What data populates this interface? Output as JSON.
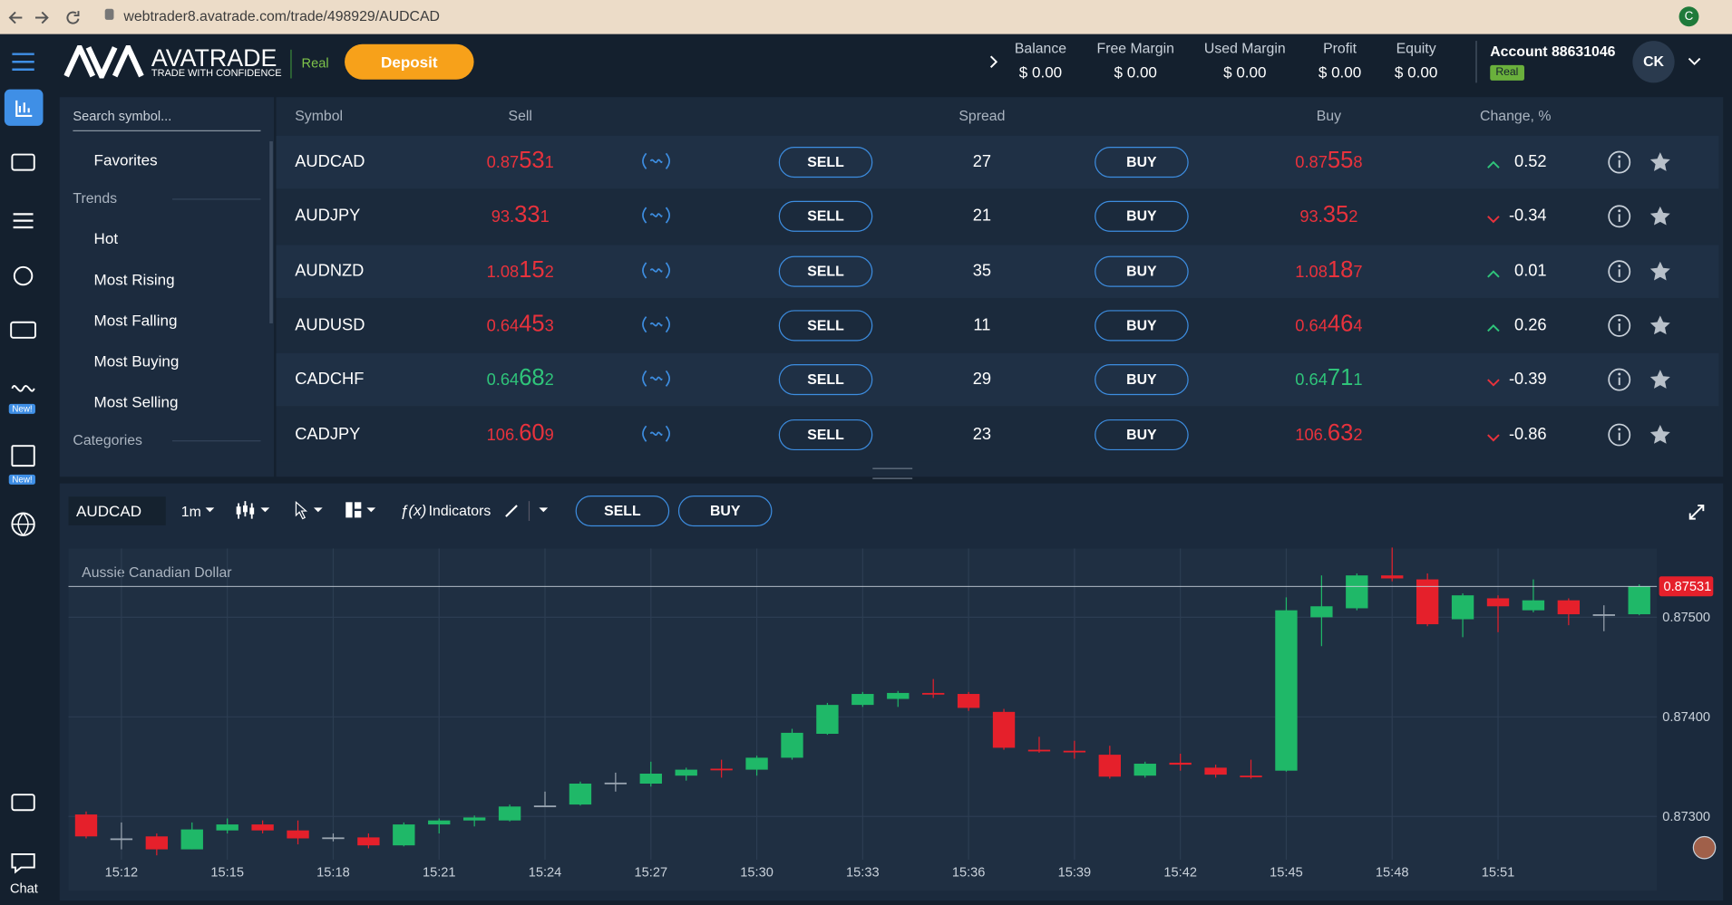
{
  "browser": {
    "url": "webtrader8.avatrade.com/trade/498929/AUDCAD"
  },
  "header": {
    "logo": "AVATRADE",
    "tagline": "TRADE WITH CONFIDENCE",
    "mode": "Real",
    "deposit": "Deposit",
    "stats": [
      {
        "label": "Balance",
        "value": "$ 0.00"
      },
      {
        "label": "Free Margin",
        "value": "$ 0.00"
      },
      {
        "label": "Used Margin",
        "value": "$ 0.00"
      },
      {
        "label": "Profit",
        "value": "$ 0.00"
      },
      {
        "label": "Equity",
        "value": "$ 0.00"
      }
    ],
    "account": "Account 88631046",
    "account_badge": "Real",
    "avatar": "CK"
  },
  "sidebar": {
    "badges": [
      "New!",
      "New!"
    ],
    "chat": "Chat"
  },
  "panel": {
    "search": "Search symbol...",
    "items": [
      {
        "text": "Favorites",
        "kind": "item"
      },
      {
        "text": "Trends",
        "kind": "section"
      },
      {
        "text": "Hot",
        "kind": "item"
      },
      {
        "text": "Most Rising",
        "kind": "item"
      },
      {
        "text": "Most Falling",
        "kind": "item"
      },
      {
        "text": "Most Buying",
        "kind": "item"
      },
      {
        "text": "Most Selling",
        "kind": "item"
      },
      {
        "text": "Categories",
        "kind": "section"
      }
    ]
  },
  "table": {
    "columns": [
      "Symbol",
      "Sell",
      "Spread",
      "Buy",
      "Change, %"
    ],
    "buttons": {
      "sell": "SELL",
      "buy": "BUY"
    },
    "rows": [
      {
        "symbol": "AUDCAD",
        "sell": "0.87531",
        "spread": 27,
        "buy": "0.87558",
        "change": 0.52,
        "color": "#e8323c"
      },
      {
        "symbol": "AUDJPY",
        "sell": "93.331",
        "spread": 21,
        "buy": "93.352",
        "change": -0.34,
        "color": "#e8323c"
      },
      {
        "symbol": "AUDNZD",
        "sell": "1.08152",
        "spread": 35,
        "buy": "1.08187",
        "change": 0.01,
        "color": "#e8323c"
      },
      {
        "symbol": "AUDUSD",
        "sell": "0.64453",
        "spread": 11,
        "buy": "0.64464",
        "change": 0.26,
        "color": "#e8323c"
      },
      {
        "symbol": "CADCHF",
        "sell": "0.64682",
        "spread": 29,
        "buy": "0.64711",
        "change": -0.39,
        "color": "#2fc47a"
      },
      {
        "symbol": "CADJPY",
        "sell": "106.609",
        "spread": 23,
        "buy": "106.632",
        "change": -0.86,
        "color": "#e8323c"
      }
    ]
  },
  "toolbar": {
    "symbol": "AUDCAD",
    "timeframe": "1m",
    "indicators": "Indicators",
    "sell": "SELL",
    "buy": "BUY"
  },
  "chart_data": {
    "type": "candlestick",
    "title": "Aussie Canadian Dollar",
    "categories": [
      null,
      "15:12",
      null,
      null,
      "15:15",
      null,
      null,
      "15:18",
      null,
      null,
      "15:21",
      null,
      null,
      "15:24",
      null,
      null,
      "15:27",
      null,
      null,
      "15:30",
      null,
      null,
      "15:33",
      null,
      null,
      "15:36",
      null,
      null,
      "15:39",
      null,
      null,
      "15:42",
      null,
      null,
      "15:45",
      null,
      null,
      "15:48",
      null,
      null,
      "15:51",
      null,
      null,
      null,
      null
    ],
    "open": [
      0.87302,
      0.87278,
      0.8728,
      0.87267,
      0.87286,
      0.87292,
      0.87286,
      0.87279,
      0.87279,
      0.87271,
      0.87292,
      0.87296,
      0.87296,
      0.87311,
      0.87312,
      0.87334,
      0.87333,
      0.87341,
      0.87348,
      0.87347,
      0.87359,
      0.87383,
      0.87412,
      0.87418,
      0.87424,
      0.87423,
      0.87405,
      0.87367,
      0.87366,
      0.87362,
      0.87341,
      0.87354,
      0.87349,
      0.87341,
      0.87346,
      0.875,
      0.87509,
      0.87542,
      0.87538,
      0.87498,
      0.87519,
      0.87507,
      0.87517,
      0.87503,
      0.87503
    ],
    "high": [
      0.87305,
      0.87294,
      0.87283,
      0.87294,
      0.87298,
      0.87296,
      0.87296,
      0.87283,
      0.87283,
      0.87294,
      0.87298,
      0.87301,
      0.87312,
      0.87325,
      0.87335,
      0.87344,
      0.87355,
      0.87349,
      0.87357,
      0.87361,
      0.87388,
      0.87414,
      0.87425,
      0.87426,
      0.87438,
      0.87425,
      0.87408,
      0.8738,
      0.87376,
      0.87371,
      0.87355,
      0.87363,
      0.87352,
      0.87357,
      0.8752,
      0.87542,
      0.87544,
      0.8757,
      0.87544,
      0.87524,
      0.87522,
      0.87538,
      0.87519,
      0.87512,
      0.87533
    ],
    "low": [
      0.87278,
      0.87267,
      0.87261,
      0.87267,
      0.87283,
      0.87283,
      0.87272,
      0.87275,
      0.87268,
      0.8727,
      0.87283,
      0.8729,
      0.87295,
      0.8731,
      0.87311,
      0.87325,
      0.8733,
      0.87336,
      0.87339,
      0.87341,
      0.87357,
      0.87382,
      0.8741,
      0.8741,
      0.87419,
      0.87406,
      0.87367,
      0.87364,
      0.87358,
      0.87338,
      0.87339,
      0.87346,
      0.87339,
      0.87338,
      0.87345,
      0.87471,
      0.87507,
      0.87536,
      0.87491,
      0.8748,
      0.87485,
      0.87505,
      0.87492,
      0.87486,
      0.87502
    ],
    "close": [
      0.8728,
      0.87278,
      0.87267,
      0.87287,
      0.87292,
      0.87286,
      0.87278,
      0.87279,
      0.87271,
      0.87292,
      0.87296,
      0.87299,
      0.8731,
      0.87311,
      0.87333,
      0.87334,
      0.87343,
      0.87347,
      0.87347,
      0.87359,
      0.87384,
      0.87412,
      0.87423,
      0.87424,
      0.87423,
      0.87409,
      0.87369,
      0.87366,
      0.87365,
      0.8734,
      0.87353,
      0.87352,
      0.87342,
      0.8734,
      0.87507,
      0.87511,
      0.87542,
      0.87539,
      0.87493,
      0.87522,
      0.87511,
      0.87517,
      0.87503,
      0.87503,
      0.87531
    ],
    "ylim": [
      0.87261,
      0.87569
    ],
    "yticks": [
      {
        "value": 0.873,
        "label": "0.87300"
      },
      {
        "value": 0.874,
        "label": "0.87400"
      },
      {
        "value": 0.875,
        "label": "0.87500"
      }
    ],
    "last_price": {
      "value": 0.87531,
      "label": "0.87531"
    },
    "colors": {
      "up": "#1fb868",
      "down": "#e5202b",
      "flat": "#9aa5b1"
    },
    "grid": true
  }
}
